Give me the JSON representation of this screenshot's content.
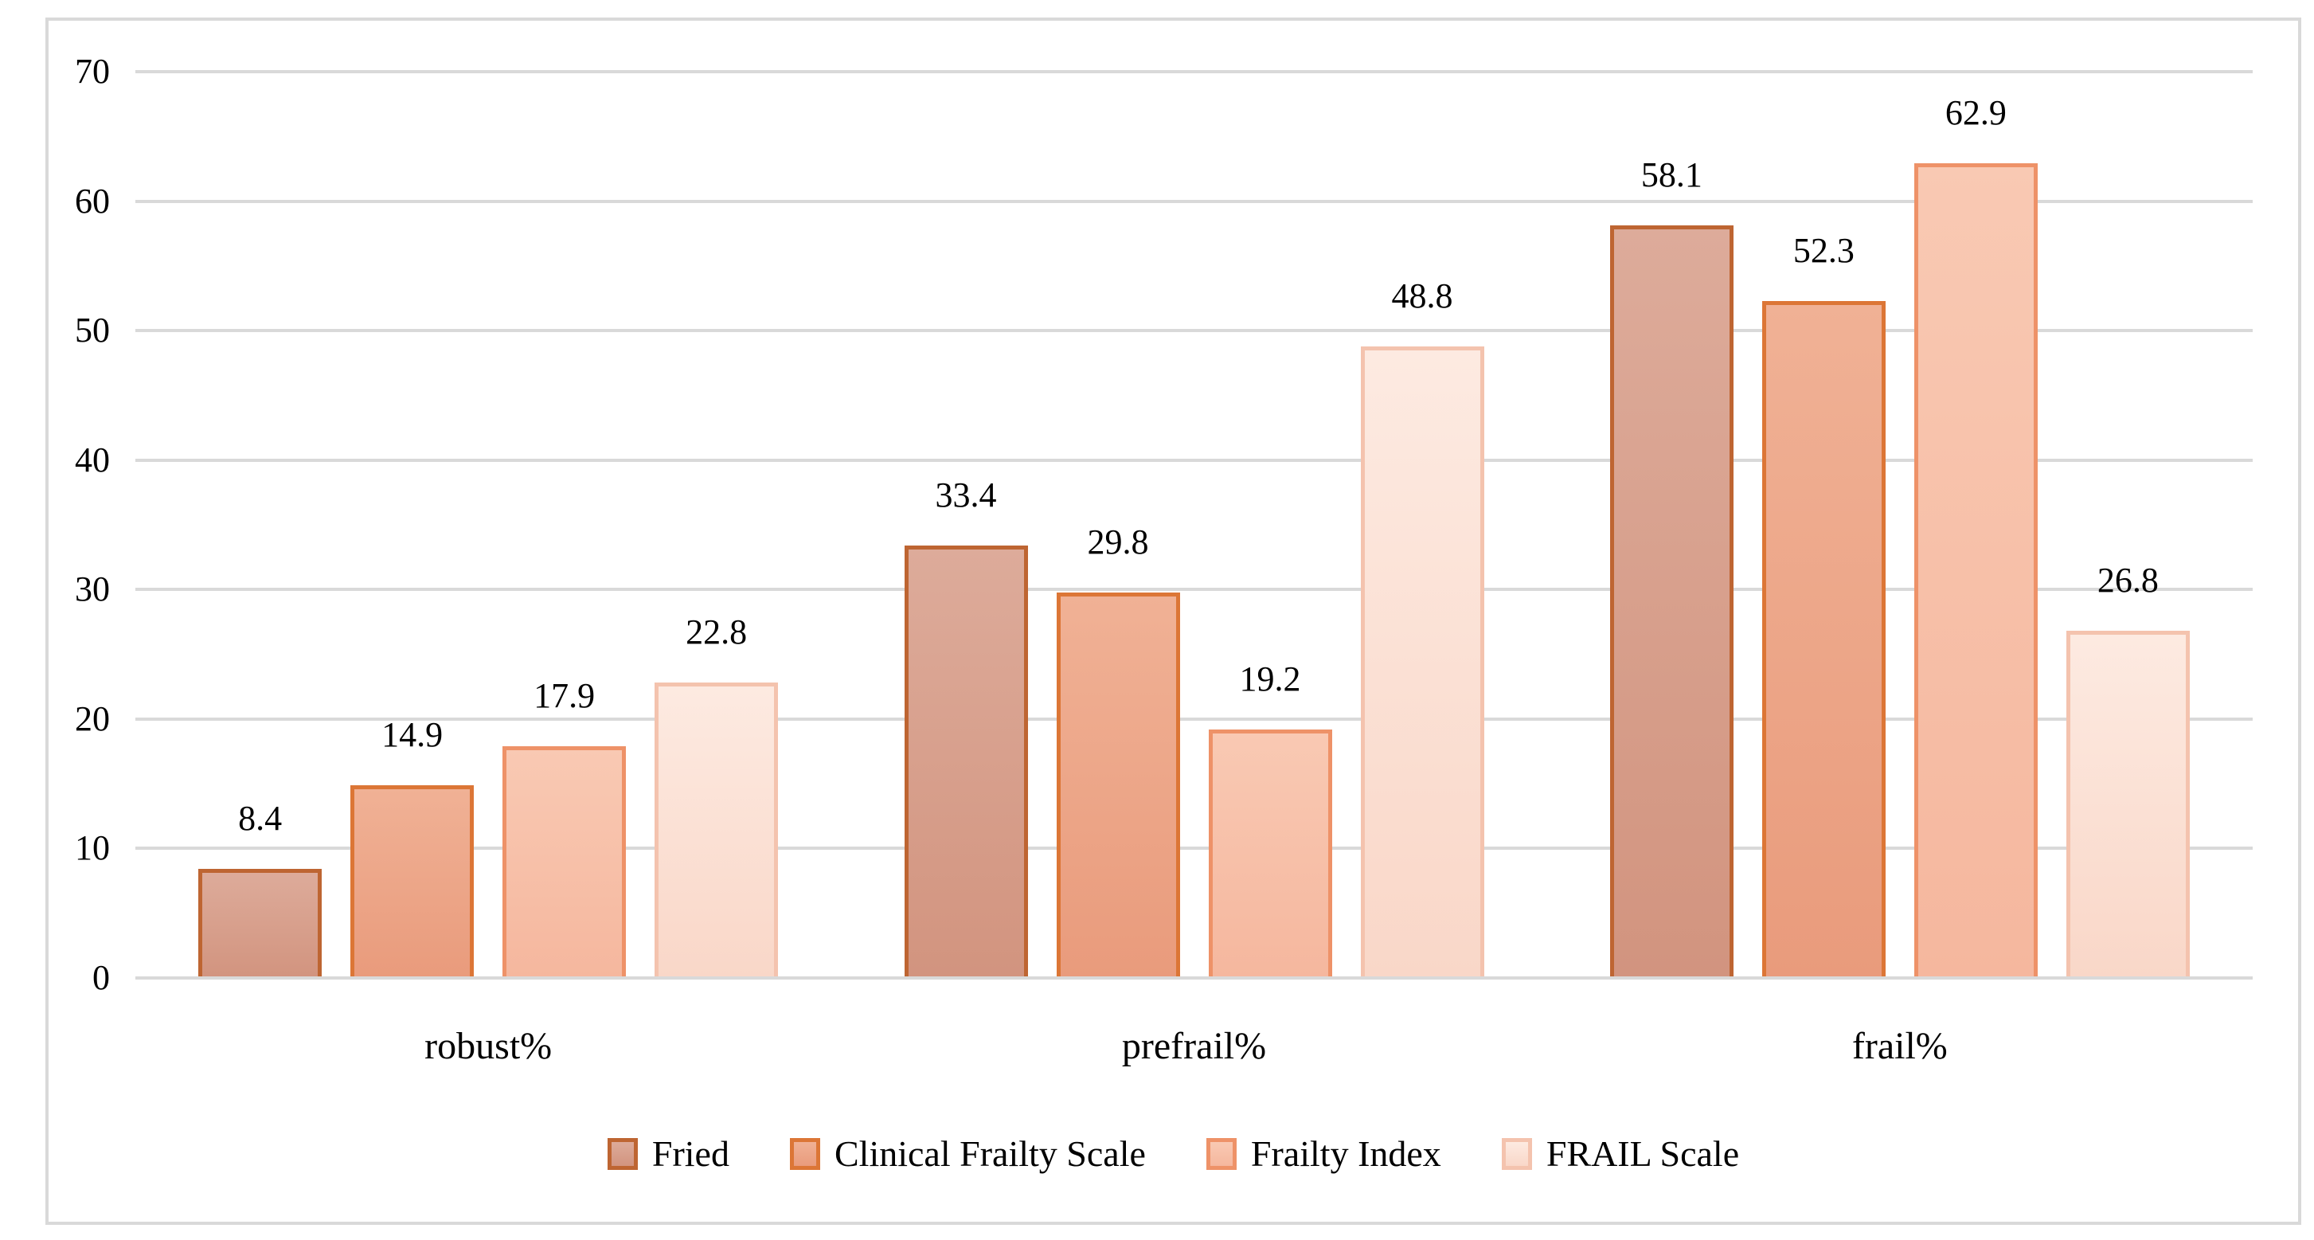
{
  "chart_data": {
    "type": "bar",
    "title": "",
    "xlabel": "",
    "ylabel": "",
    "categories": [
      "robust%",
      "prefrail%",
      "frail%"
    ],
    "series": [
      {
        "name": "Fried",
        "values": [
          8.4,
          33.4,
          58.1
        ],
        "fill_top": "#ddab9a",
        "fill_bottom": "#d2947f",
        "border": "#be6532"
      },
      {
        "name": "Clinical Frailty Scale",
        "values": [
          14.9,
          29.8,
          52.3
        ],
        "fill_top": "#f0b195",
        "fill_bottom": "#e99b7c",
        "border": "#dc7636"
      },
      {
        "name": "Frailty Index",
        "values": [
          17.9,
          19.2,
          62.9
        ],
        "fill_top": "#f9c9b3",
        "fill_bottom": "#f5b79e",
        "border": "#ee9268"
      },
      {
        "name": "FRAIL Scale",
        "values": [
          22.8,
          48.8,
          26.8
        ],
        "fill_top": "#fdeae1",
        "fill_bottom": "#f9d7c8",
        "border": "#f4c3ae"
      }
    ],
    "ylim": [
      0,
      70
    ],
    "y_ticks": [
      0,
      10,
      20,
      30,
      40,
      50,
      60,
      70
    ],
    "grid": true,
    "data_labels": true,
    "legend_position": "bottom"
  },
  "colors": {
    "background": "#ffffff",
    "frame_border": "#d9d9d9",
    "gridline": "#d9d9d9",
    "text": "#000000"
  }
}
